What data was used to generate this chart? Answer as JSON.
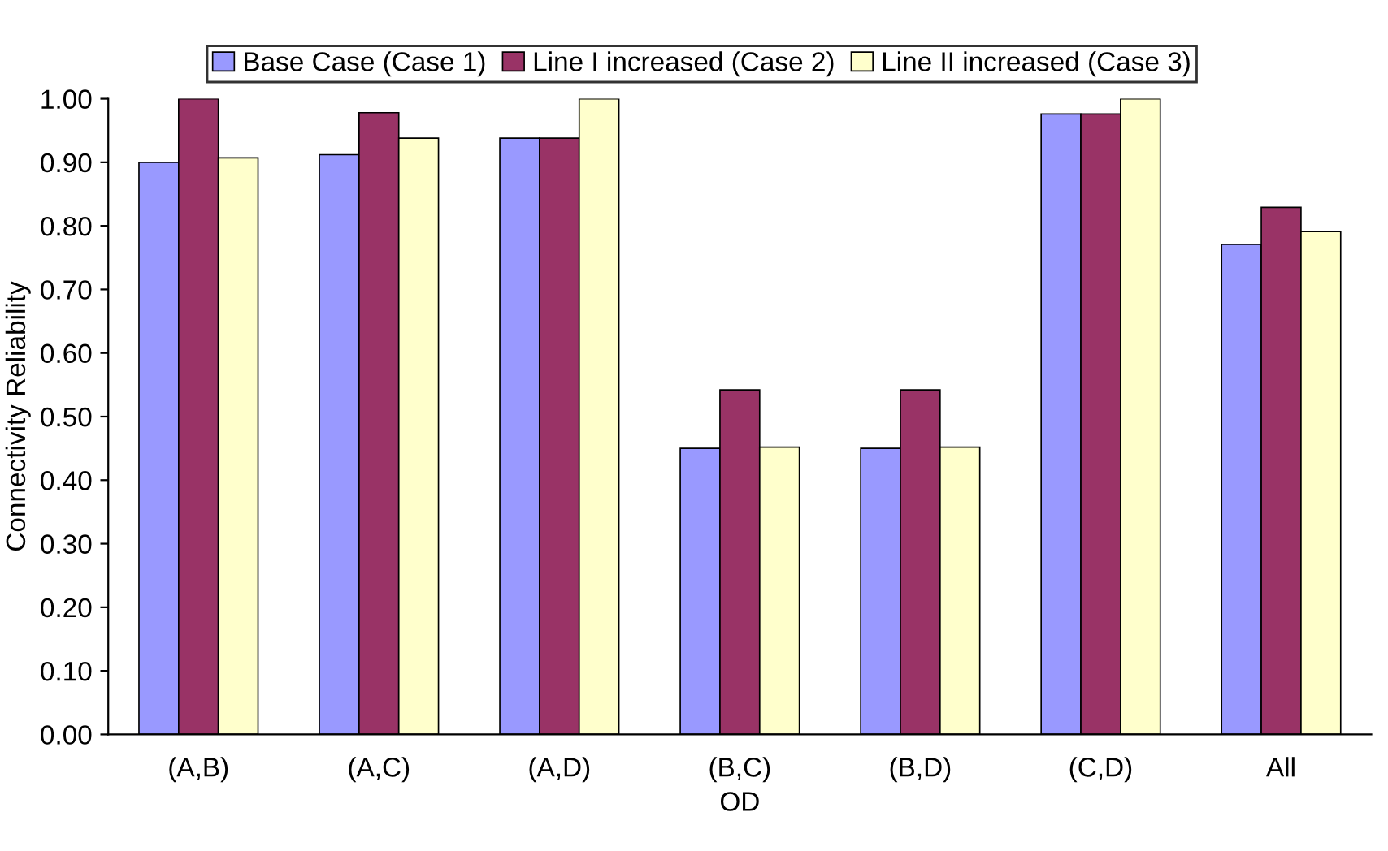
{
  "chart_data": {
    "type": "bar",
    "xlabel": "OD",
    "ylabel": "Connectivity Reliability",
    "categories": [
      "(A,B)",
      "(A,C)",
      "(A,D)",
      "(B,C)",
      "(B,D)",
      "(C,D)",
      "All"
    ],
    "series": [
      {
        "name": "Base Case (Case 1)",
        "color": "#9999ff",
        "values": [
          0.9,
          0.912,
          0.938,
          0.45,
          0.45,
          0.976,
          0.771
        ]
      },
      {
        "name": "Line I increased (Case 2)",
        "color": "#993366",
        "values": [
          1.0,
          0.978,
          0.938,
          0.542,
          0.542,
          0.976,
          0.829
        ]
      },
      {
        "name": "Line II increased (Case 3)",
        "color": "#ffffcc",
        "values": [
          0.907,
          0.938,
          1.0,
          0.452,
          0.452,
          1.0,
          0.791
        ]
      }
    ],
    "ylim": [
      0,
      1.0
    ],
    "yticks": [
      {
        "value": 0,
        "label": "0.00"
      },
      {
        "value": 0.1,
        "label": "0.10"
      },
      {
        "value": 0.2,
        "label": "0.20"
      },
      {
        "value": 0.3,
        "label": "0.30"
      },
      {
        "value": 0.4,
        "label": "0.40"
      },
      {
        "value": 0.5,
        "label": "0.50"
      },
      {
        "value": 0.6,
        "label": "0.60"
      },
      {
        "value": 0.7,
        "label": "0.70"
      },
      {
        "value": 0.8,
        "label": "0.80"
      },
      {
        "value": 0.9,
        "label": "0.90"
      },
      {
        "value": 1.0,
        "label": "1.00"
      }
    ],
    "legend": "top",
    "grid": false
  }
}
